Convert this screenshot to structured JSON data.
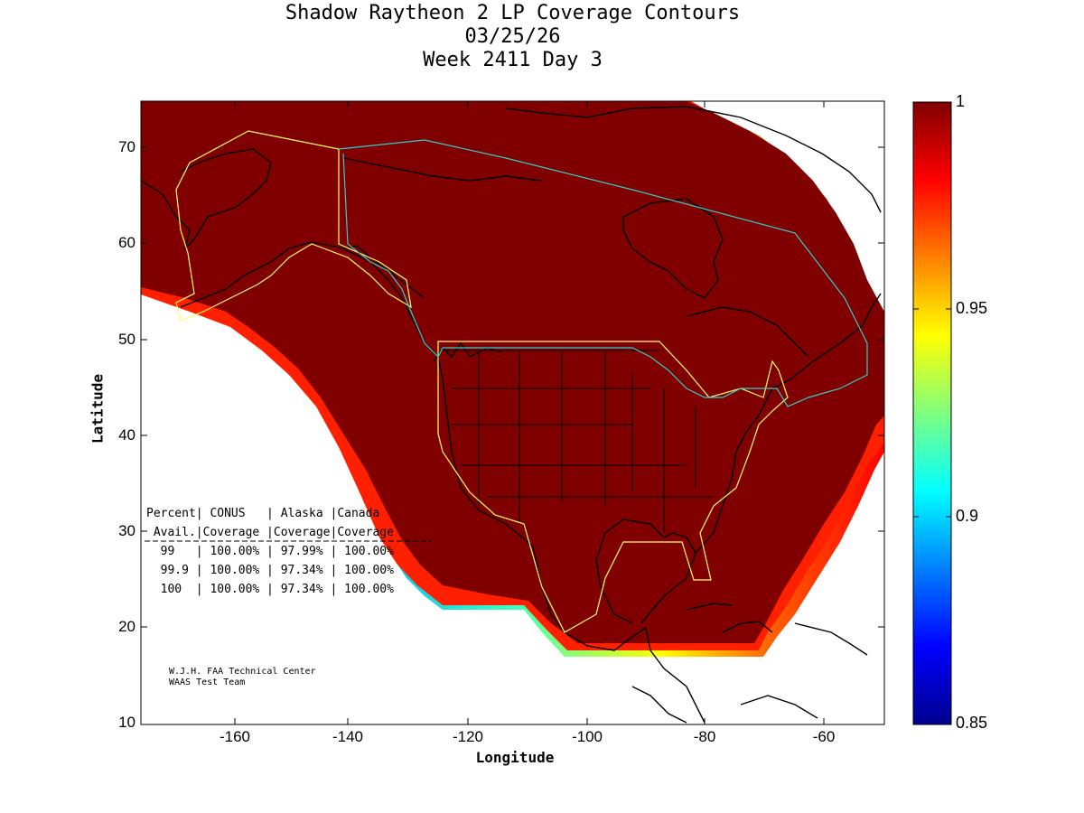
{
  "title": {
    "line1": "Shadow Raytheon 2 LP Coverage Contours",
    "line2": "03/25/26",
    "line3": "Week 2411 Day 3"
  },
  "axes": {
    "xlabel": "Longitude",
    "ylabel": "Latitude",
    "xlim": [
      -175,
      -50
    ],
    "ylim": [
      10,
      75
    ],
    "xticks": [
      "-160",
      "-140",
      "-120",
      "-100",
      "-80",
      "-60"
    ],
    "yticks": [
      "10",
      "20",
      "30",
      "40",
      "50",
      "60",
      "70"
    ]
  },
  "colorbar": {
    "range": [
      0.85,
      1
    ],
    "ticks": [
      "1",
      "0.95",
      "0.9",
      "0.85"
    ],
    "colormap": "jet"
  },
  "colors": {
    "full_coverage": "#800000",
    "us_boundary": "#ffff66",
    "canada_boundary": "#33cccc",
    "coastline": "#000000"
  },
  "table": {
    "header1": "Percent| CONUS   | Alaska |Canada",
    "header2": " Avail.|Coverage |Coverage|Coverage",
    "rows": [
      "  99   | 100.00% | 97.99% | 100.00%",
      "  99.9 | 100.00% | 97.34% | 100.00%",
      "  100  | 100.00% | 97.34% | 100.00%"
    ]
  },
  "credit": {
    "line1": "W.J.H. FAA Technical Center",
    "line2": "WAAS Test Team"
  }
}
